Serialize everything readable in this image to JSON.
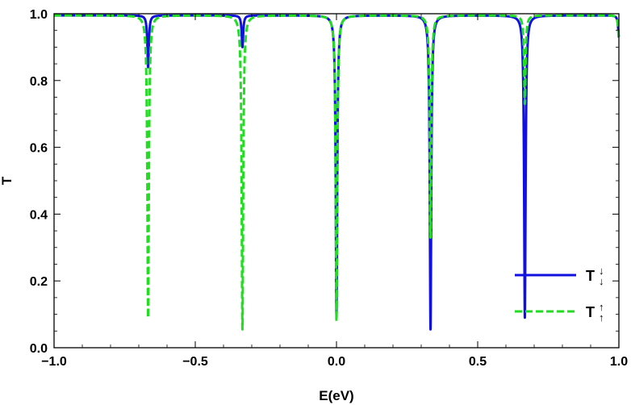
{
  "chart_data": {
    "type": "line",
    "xlabel": "E(eV)",
    "ylabel": "T",
    "xlim": [
      -1.0,
      1.0
    ],
    "ylim": [
      0.0,
      1.0
    ],
    "x_ticks": [
      "-1.0",
      "-0.5",
      "0.0",
      "0.5",
      "1.0"
    ],
    "y_ticks": [
      "0.0",
      "0.2",
      "0.4",
      "0.6",
      "0.8",
      "1.0"
    ],
    "grid": false,
    "legend_position": "bottom-right",
    "series": [
      {
        "name": "T↓↓",
        "color": "#1010e0",
        "style": "solid",
        "baseline": 0.995,
        "dips": [
          {
            "x": -0.667,
            "min": 0.84
          },
          {
            "x": -0.333,
            "min": 0.9
          },
          {
            "x": 0.0,
            "min": 0.1
          },
          {
            "x": 0.333,
            "min": 0.055
          },
          {
            "x": 0.667,
            "min": 0.09
          },
          {
            "x": 1.0,
            "min": 0.93
          }
        ]
      },
      {
        "name": "T↑↑",
        "color": "#22dd22",
        "style": "dashed",
        "baseline": 0.995,
        "dips": [
          {
            "x": -0.667,
            "min": 0.09
          },
          {
            "x": -0.333,
            "min": 0.055
          },
          {
            "x": 0.0,
            "min": 0.08
          },
          {
            "x": 0.333,
            "min": 0.33
          },
          {
            "x": 0.667,
            "min": 0.73
          },
          {
            "x": 1.0,
            "min": 0.93
          }
        ]
      }
    ],
    "legend": [
      {
        "symbol": "T",
        "arrows": "↓↓",
        "series": 0
      },
      {
        "symbol": "T",
        "arrows": "↑↑",
        "series": 1
      }
    ]
  }
}
